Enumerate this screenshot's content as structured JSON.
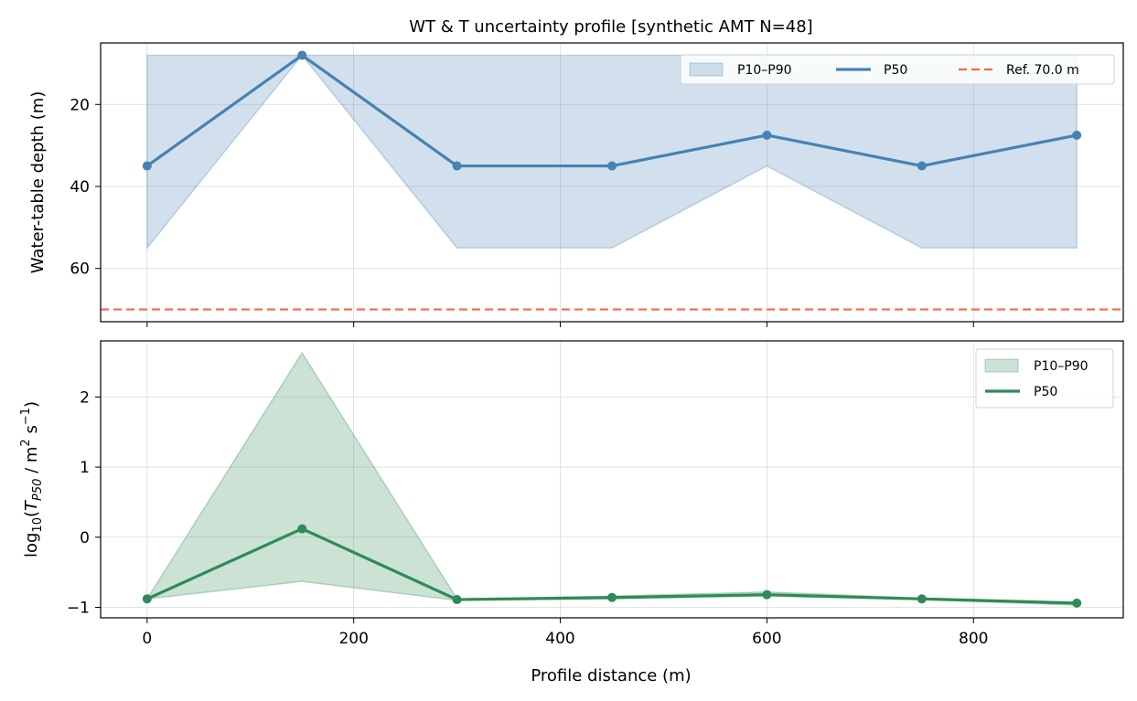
{
  "chart_data": {
    "title": "WT & T uncertainty profile  [synthetic AMT  N=48]",
    "xlabel": "Profile distance (m)",
    "xlim": [
      -45,
      945
    ],
    "xticks": [
      0,
      200,
      400,
      600,
      800
    ],
    "xtick_labels": [
      "0",
      "200",
      "400",
      "600",
      "800"
    ],
    "grid": true,
    "panels": [
      {
        "type": "line",
        "ylabel": "Water-table depth (m)",
        "y_inverted": true,
        "ylim": [
          73,
          5
        ],
        "yticks": [
          20,
          40,
          60
        ],
        "ytick_labels": [
          "20",
          "40",
          "60"
        ],
        "x": [
          0,
          150,
          300,
          450,
          600,
          750,
          900
        ],
        "series": [
          {
            "name": "P10–P90",
            "kind": "band",
            "color": "#4682b4",
            "lower": [
              8,
              8,
              8,
              8,
              8,
              8,
              8
            ],
            "upper": [
              55,
              8,
              55,
              55,
              35,
              55,
              55
            ]
          },
          {
            "name": "P50",
            "kind": "line",
            "color": "#4682b4",
            "values": [
              35,
              8,
              35,
              35,
              27.5,
              35,
              27.5
            ]
          },
          {
            "name": "Ref. 70.0 m",
            "kind": "hline",
            "color": "#ff6347",
            "value": 70
          }
        ],
        "legend": {
          "placement": "top-right",
          "columns": 3
        }
      },
      {
        "type": "line",
        "ylabel_parts": {
          "base": "log",
          "sub1": "10",
          "open": "(",
          "T": "T",
          "sub2": "P50",
          "units": " / m",
          "sup1": "2",
          "mid": " s",
          "sup2": "−1",
          "close": ")"
        },
        "ylim": [
          -1.15,
          2.8
        ],
        "yticks": [
          -1,
          0,
          1,
          2
        ],
        "ytick_labels": [
          "−1",
          "0",
          "1",
          "2"
        ],
        "x": [
          0,
          150,
          300,
          450,
          600,
          750,
          900
        ],
        "series": [
          {
            "name": "P10–P90",
            "kind": "band",
            "color": "#2e8b57",
            "lower": [
              -0.88,
              -0.63,
              -0.9,
              -0.88,
              -0.84,
              -0.89,
              -0.97
            ],
            "upper": [
              -0.88,
              2.63,
              -0.88,
              -0.84,
              -0.78,
              -0.87,
              -0.93
            ]
          },
          {
            "name": "P50",
            "kind": "line",
            "color": "#2e8b57",
            "values": [
              -0.88,
              0.12,
              -0.89,
              -0.86,
              -0.82,
              -0.88,
              -0.94
            ]
          }
        ],
        "legend": {
          "placement": "top-right",
          "columns": 1
        }
      }
    ]
  }
}
